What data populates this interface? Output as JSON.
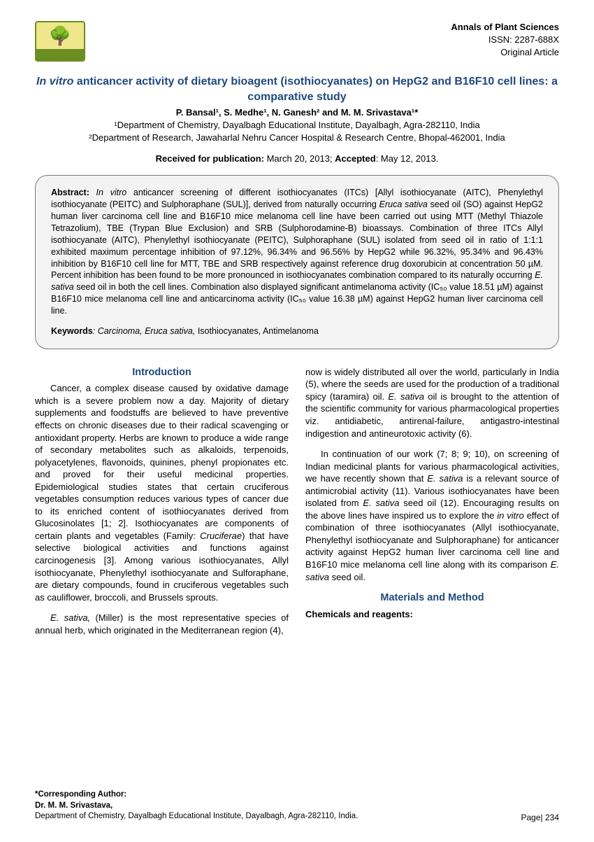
{
  "journal": {
    "name": "Annals of Plant Sciences",
    "issn": "ISSN: 2287-688X",
    "type": "Original Article"
  },
  "title_prefix": "In vitro",
  "title_rest": " anticancer activity of dietary bioagent (isothiocyanates) on HepG2 and B16F10 cell lines: a comparative study",
  "authors_html": "P. Bansal¹, S. Medhe¹, N. Ganesh² and M. M. Srivastava¹*",
  "affiliations": {
    "a1": "¹Department of Chemistry, Dayalbagh Educational Institute, Dayalbagh, Agra-282110, India",
    "a2": "²Department of Research, Jawaharlal Nehru Cancer Hospital & Research Centre, Bhopal-462001, India"
  },
  "dates": {
    "received_label": "Received for publication:",
    "received": " March 20, 2013; ",
    "accepted_label": "Accepted",
    "accepted": ": May 12, 2013."
  },
  "abstract": {
    "label": "Abstract: ",
    "text1": "In vitro",
    "text2": " anticancer screening of different isothiocyanates (ITCs) [Allyl isothiocyanate (AITC), Phenylethyl isothiocyanate (PEITC) and Sulphoraphane (SUL)], derived from naturally occurring ",
    "text3": "Eruca sativa",
    "text4": " seed oil (SO) against HepG2 human liver carcinoma cell line and B16F10 mice melanoma cell line have been carried out using MTT (Methyl Thiazole Tetrazolium), TBE (Trypan Blue Exclusion) and SRB (Sulphorodamine-B)  bioassays. Combination of three ITCs Allyl isothiocyanate (AITC), Phenylethyl isothiocyanate (PEITC), Sulphoraphane (SUL) isolated from seed oil in ratio of 1:1:1 exhibited maximum percentage inhibition of 97.12%, 96.34% and 96.56% by HepG2 while  96.32%, 95.34% and 96.43% inhibition by B16F10 cell line for MTT, TBE and SRB respectively against reference drug doxorubicin at concentration 50 µM. Percent inhibition has been found to be more pronounced in isothiocyanates combination compared to its naturally occurring ",
    "text5": "E. sativa",
    "text6": " seed oil in both the cell lines. Combination also displayed significant antimelanoma activity (IC₅₀ value 18.51 µM) against B16F10 mice melanoma cell line and anticarcinoma activity (IC₅₀ value 16.38 µM) against HepG2 human liver carcinoma cell line.",
    "kw_label": "Keywords",
    "kw_text1": ": Carcinoma, ",
    "kw_text2": "Eruca sativa,",
    "kw_text3": " Isothiocyanates, Antimelanoma"
  },
  "sections": {
    "intro_head": "Introduction",
    "intro_p1a": "Cancer, a complex disease caused by oxidative damage which is a severe problem now a day. Majority of dietary supplements and foodstuffs are believed to have preventive effects on chronic diseases due to their radical scavenging or antioxidant property. Herbs are known to produce a wide range of secondary metabolites such as alkaloids, terpenoids, polyacetylenes, flavonoids, quinines, phenyl propionates etc. and proved for their useful medicinal properties. Epidemiological studies states that certain cruciferous vegetables consumption reduces various types of cancer due to its enriched content of isothiocyanates derived from Glucosinolates [1; 2]. Isothiocyanates are components of certain plants and vegetables (Family: ",
    "intro_p1b": "Cruciferae",
    "intro_p1c": ") that have selective biological activities and functions against carcinogenesis [3]. Among various isothiocyanates, Allyl isothiocyanate, Phenylethyl isothiocyanate and Sulforaphane, are dietary compounds, found in cruciferous vegetables such as cauliflower, broccoli, and Brussels sprouts.",
    "intro_p2a": "E. sativa,",
    "intro_p2b": " (Miller) is the most representative species of annual herb, which originated in the Mediterranean region (4),",
    "col2_p1a": "now is widely distributed all over the world, particularly in India (5), where the seeds are used for the production of a traditional spicy (taramira) oil. ",
    "col2_p1b": "E. sativa",
    "col2_p1c": " oil is brought to the attention of the scientific community for various pharmacological properties viz. antidiabetic, antirenal-failure, antigastro-intestinal indigestion and antineurotoxic activity (6).",
    "col2_p2a": "In continuation of our work (7; 8; 9; 10), on screening of Indian medicinal plants for various pharmacological activities, we have recently shown that ",
    "col2_p2b": "E. sativa",
    "col2_p2c": " is a relevant source of antimicrobial activity (11). Various isothiocyanates have been isolated from ",
    "col2_p2d": "E. sativa",
    "col2_p2e": " seed oil (12). Encouraging results on the above lines have inspired us to explore the ",
    "col2_p2f": "in vitro",
    "col2_p2g": " effect of combination of three isothiocyanates (Allyl isothiocyanate, Phenylethyl isothiocyanate and Sulphoraphane) for anticancer activity against HepG2 human liver carcinoma cell line and B16F10 mice melanoma cell line along with its comparison ",
    "col2_p2h": "E. sativa",
    "col2_p2i": " seed oil.",
    "mm_head": "Materials and Method",
    "mm_sub": "Chemicals and reagents:"
  },
  "footer": {
    "corr_label": "*Corresponding Author:",
    "corr_name": "Dr. M. M. Srivastava,",
    "corr_addr": "Department of Chemistry, Dayalbagh Educational Institute, Dayalbagh, Agra-282110, India."
  },
  "page": "Page| 234",
  "colors": {
    "heading": "#1f497d",
    "abstract_bg": "#f3f3f3",
    "abstract_border": "#7a7a7a"
  }
}
